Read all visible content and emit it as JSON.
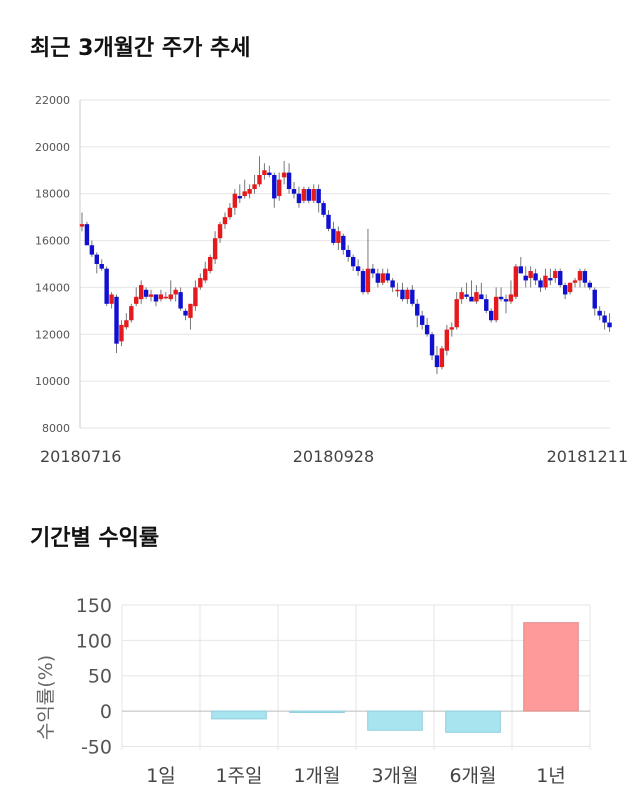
{
  "sections": {
    "price_title": "최근 3개월간 주가 추세",
    "returns_title": "기간별 수익률"
  },
  "colors": {
    "up": "#e41a1c",
    "down": "#1010d0",
    "returns_pos": "#ff9a9a",
    "returns_neg": "#a8e4f0"
  },
  "chart_data": [
    {
      "type": "candlestick",
      "title": "최근 3개월간 주가 추세",
      "ylim": [
        8000,
        22000
      ],
      "y_ticks": [
        8000,
        10000,
        12000,
        14000,
        16000,
        18000,
        20000,
        22000
      ],
      "x_tick_labels": [
        {
          "index": 0,
          "label": "20180716"
        },
        {
          "index": 51,
          "label": "20180928"
        },
        {
          "index": 101,
          "label": "20181211"
        }
      ],
      "grid": true,
      "candles": [
        [
          16600,
          17200,
          16400,
          16700
        ],
        [
          16700,
          16800,
          15800,
          15800
        ],
        [
          15800,
          16000,
          15300,
          15400
        ],
        [
          15400,
          15500,
          14600,
          15000
        ],
        [
          15000,
          15200,
          14700,
          14800
        ],
        [
          14800,
          14900,
          13200,
          13300
        ],
        [
          13300,
          13800,
          13100,
          13700
        ],
        [
          13600,
          13700,
          11200,
          11600
        ],
        [
          11700,
          12600,
          11500,
          12400
        ],
        [
          12300,
          12900,
          12200,
          12600
        ],
        [
          12600,
          13300,
          12500,
          13200
        ],
        [
          13300,
          14000,
          13200,
          13600
        ],
        [
          13500,
          14300,
          13300,
          14100
        ],
        [
          13900,
          14000,
          13500,
          13600
        ],
        [
          13600,
          13900,
          13400,
          13700
        ],
        [
          13700,
          13700,
          13200,
          13400
        ],
        [
          13500,
          13900,
          13400,
          13700
        ],
        [
          13600,
          13800,
          13500,
          13600
        ],
        [
          13500,
          14300,
          13400,
          13700
        ],
        [
          13700,
          14000,
          13400,
          13900
        ],
        [
          13800,
          14000,
          13000,
          13100
        ],
        [
          13000,
          13100,
          12600,
          12800
        ],
        [
          12700,
          13300,
          12200,
          13300
        ],
        [
          13200,
          14300,
          13000,
          14000
        ],
        [
          14000,
          14600,
          13900,
          14400
        ],
        [
          14300,
          15100,
          14200,
          14800
        ],
        [
          14700,
          15400,
          14600,
          15300
        ],
        [
          15200,
          16400,
          15000,
          16100
        ],
        [
          16100,
          16800,
          15900,
          16700
        ],
        [
          16700,
          17200,
          16500,
          17000
        ],
        [
          17000,
          17600,
          16900,
          17400
        ],
        [
          17400,
          18200,
          17100,
          18000
        ],
        [
          17900,
          18400,
          17600,
          17800
        ],
        [
          17900,
          18600,
          17800,
          18100
        ],
        [
          18000,
          18400,
          17800,
          18200
        ],
        [
          18200,
          18800,
          18000,
          18400
        ],
        [
          18400,
          19600,
          18300,
          18800
        ],
        [
          18800,
          19300,
          18600,
          19000
        ],
        [
          18900,
          19200,
          18700,
          18800
        ],
        [
          18800,
          18900,
          17400,
          17800
        ],
        [
          17900,
          18900,
          17700,
          18600
        ],
        [
          18700,
          19400,
          18400,
          18900
        ],
        [
          18900,
          19300,
          18000,
          18200
        ],
        [
          18200,
          18500,
          17800,
          18000
        ],
        [
          18000,
          18300,
          17400,
          17600
        ],
        [
          17700,
          18300,
          17600,
          18200
        ],
        [
          18200,
          18300,
          17600,
          17700
        ],
        [
          17700,
          18400,
          17600,
          18200
        ],
        [
          18200,
          18400,
          17200,
          17600
        ],
        [
          17600,
          17700,
          17000,
          17100
        ],
        [
          17100,
          17300,
          16400,
          16500
        ],
        [
          16500,
          16800,
          15800,
          15900
        ],
        [
          15900,
          16600,
          15600,
          16400
        ],
        [
          16200,
          16300,
          15400,
          15600
        ],
        [
          15600,
          15800,
          15100,
          15300
        ],
        [
          15300,
          15400,
          14700,
          14900
        ],
        [
          14900,
          15200,
          14500,
          14700
        ],
        [
          14700,
          14800,
          13700,
          13800
        ],
        [
          13800,
          16500,
          13700,
          14800
        ],
        [
          14800,
          15000,
          14400,
          14600
        ],
        [
          14600,
          14800,
          14000,
          14200
        ],
        [
          14200,
          14800,
          14100,
          14600
        ],
        [
          14600,
          14800,
          14200,
          14300
        ],
        [
          14300,
          14400,
          13800,
          14000
        ],
        [
          13900,
          14200,
          13600,
          13900
        ],
        [
          13900,
          14200,
          13400,
          13500
        ],
        [
          13500,
          14000,
          13300,
          13900
        ],
        [
          13900,
          14100,
          13200,
          13300
        ],
        [
          13300,
          13500,
          12300,
          12800
        ],
        [
          12800,
          13000,
          12200,
          12400
        ],
        [
          12400,
          12700,
          11900,
          12000
        ],
        [
          12000,
          12100,
          10900,
          11100
        ],
        [
          11100,
          11500,
          10300,
          10600
        ],
        [
          10600,
          11500,
          10500,
          11400
        ],
        [
          11300,
          12400,
          11100,
          12200
        ],
        [
          12200,
          12500,
          11900,
          12300
        ],
        [
          12300,
          13800,
          12200,
          13500
        ],
        [
          13500,
          14000,
          13300,
          13800
        ],
        [
          13700,
          14200,
          13500,
          13600
        ],
        [
          13600,
          14300,
          13400,
          13400
        ],
        [
          13400,
          14100,
          13300,
          13800
        ],
        [
          13700,
          14200,
          13600,
          13500
        ],
        [
          13500,
          13700,
          12900,
          13000
        ],
        [
          13000,
          13100,
          12500,
          12600
        ],
        [
          12600,
          14000,
          12500,
          13600
        ],
        [
          13600,
          14000,
          13400,
          13500
        ],
        [
          13500,
          13700,
          12900,
          13400
        ],
        [
          13400,
          14300,
          13300,
          13700
        ],
        [
          13600,
          15000,
          13500,
          14900
        ],
        [
          14900,
          15300,
          14600,
          14600
        ],
        [
          14500,
          14900,
          14000,
          14300
        ],
        [
          14400,
          14900,
          14000,
          14700
        ],
        [
          14600,
          14800,
          14100,
          14300
        ],
        [
          14300,
          14400,
          13800,
          14000
        ],
        [
          14000,
          14800,
          13900,
          14500
        ],
        [
          14400,
          14800,
          14100,
          14300
        ],
        [
          14400,
          14800,
          14200,
          14700
        ],
        [
          14700,
          14800,
          14000,
          14100
        ],
        [
          14100,
          14200,
          13500,
          13700
        ],
        [
          13800,
          14200,
          13700,
          14200
        ],
        [
          14200,
          14400,
          14000,
          14300
        ],
        [
          14300,
          14800,
          14000,
          14700
        ],
        [
          14700,
          14800,
          14000,
          14200
        ],
        [
          14200,
          14300,
          13900,
          14000
        ],
        [
          13900,
          14000,
          12800,
          13100
        ],
        [
          13000,
          13200,
          12600,
          12800
        ],
        [
          12800,
          13000,
          12200,
          12500
        ],
        [
          12500,
          12900,
          12100,
          12300
        ]
      ]
    },
    {
      "type": "bar",
      "title": "기간별 수익률",
      "ylabel": "수익률(%)",
      "ylim": [
        -55,
        150
      ],
      "y_ticks": [
        -50,
        0,
        50,
        100,
        150
      ],
      "categories": [
        "1일",
        "1주일",
        "1개월",
        "3개월",
        "6개월",
        "1년"
      ],
      "values": [
        0,
        -11,
        -2,
        -27,
        -30,
        125
      ],
      "grid": true
    }
  ]
}
